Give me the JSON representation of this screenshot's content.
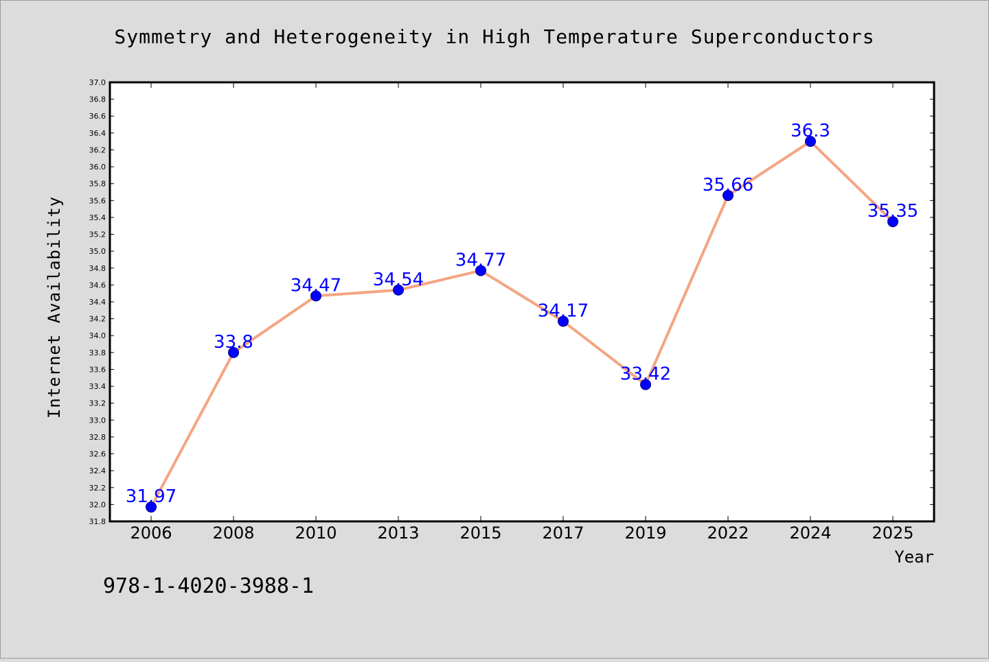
{
  "chart_data": {
    "type": "line",
    "title": "Symmetry and Heterogeneity in High Temperature Superconductors",
    "xlabel": "Year",
    "ylabel": "Internet Availability",
    "categories": [
      "2006",
      "2008",
      "2010",
      "2013",
      "2015",
      "2017",
      "2019",
      "2022",
      "2024",
      "2025"
    ],
    "values": [
      31.97,
      33.8,
      34.47,
      34.54,
      34.77,
      34.17,
      33.42,
      35.66,
      36.3,
      35.35
    ],
    "data_labels": [
      "31.97",
      "33.8",
      "34.47",
      "34.54",
      "34.77",
      "34.17",
      "33.42",
      "35.66",
      "36.3",
      "35.35"
    ],
    "ylim": [
      31.8,
      37.0
    ],
    "y_ticks": [
      "31.8",
      "32.0",
      "32.2",
      "32.4",
      "32.6",
      "32.8",
      "33.0",
      "33.2",
      "33.4",
      "33.6",
      "33.8",
      "34.0",
      "34.2",
      "34.4",
      "34.6",
      "34.8",
      "35.0",
      "35.2",
      "35.4",
      "35.6",
      "35.8",
      "36.0",
      "36.2",
      "36.4",
      "36.6",
      "36.8",
      "37.0"
    ],
    "grid": false,
    "colors": {
      "line": "#f4a582",
      "marker": "#0000ff",
      "label": "#0000ff",
      "background": "#dcdcdc",
      "plot_area": "#ffffff"
    }
  },
  "footnote": "978-1-4020-3988-1"
}
